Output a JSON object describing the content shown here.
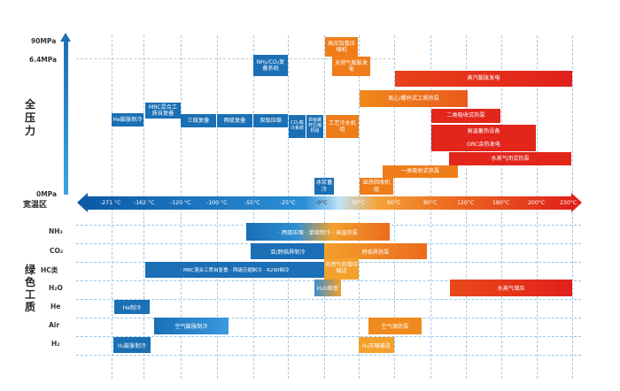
{
  "y_axis": {
    "label": "全压力",
    "tick_90": "90MPa",
    "tick_64": "6.4MPa",
    "tick_0": "0MPa"
  },
  "x_axis": {
    "label": "宽温区",
    "ticks": [
      "-271 °C",
      "-162 °C",
      "-120 °C",
      "-100 °C",
      "-55°C",
      "-25°C",
      "-0°C",
      "30°C",
      "60°C",
      "80°C",
      "120°C",
      "180°C",
      "200°C",
      "230°C"
    ]
  },
  "upper_boxes": {
    "he_exp": "He膨胀制冷",
    "mrc": "MRC混合工质自复叠",
    "three_stage": "三级复叠",
    "two_stage": "两级复叠",
    "dual_stage": "双级压缩",
    "nh3_co2": "NH₃/CO₂复叠系统",
    "co2_cool": "CO₂载冷系统",
    "single_stage": "单级螺杆压缩机组",
    "hp_heat": "高压加氢压缩机",
    "ng_exp": "天然气膨胀发电",
    "process_cool": "工艺冷水机组",
    "ice": "冰浆蓄冷",
    "heat_recovery": "显热回收机组",
    "steam_exp": "蒸汽膨胀发电",
    "centrifugal": "离心/螺杆式工质热泵",
    "absorb2": "二类吸收式热泵",
    "storage": "高温蓄热设备",
    "orc": "ORC余热发电",
    "steam_closed": "水蒸气闭式热泵",
    "absorb1": "一类吸收式热泵"
  },
  "fluid_axis": {
    "label": "绿色工质"
  },
  "fluids": {
    "nh3": {
      "name": "NH₃",
      "bar": "· 两级压缩   · 单级制冷   · 高温热泵"
    },
    "co2": {
      "name": "CO₂",
      "bar_left": "亚/跨临界制冷",
      "bar_right": "跨临界热泵"
    },
    "hc": {
      "name": "HC类",
      "bar_left": "· MRC混合工质自复叠   · 两级压缩制冷   · R290制冷",
      "bar_right": "天然气的增压输送"
    },
    "h2o": {
      "name": "H₂O",
      "bar_left": "H₂O相变",
      "bar_right": "水蒸气增压"
    },
    "he": {
      "name": "He",
      "bar": "He制冷"
    },
    "air": {
      "name": "Air",
      "bar_left": "空气膨胀制冷",
      "bar_right": "空气源热泵"
    },
    "h2": {
      "name": "H₂",
      "bar_left": "H₂膨胀制冷",
      "bar_right": "H₂压缩输送"
    }
  },
  "colors": {
    "blue": "#1a6fb5",
    "orange": "#ef7d1a",
    "red": "#e2261b"
  }
}
